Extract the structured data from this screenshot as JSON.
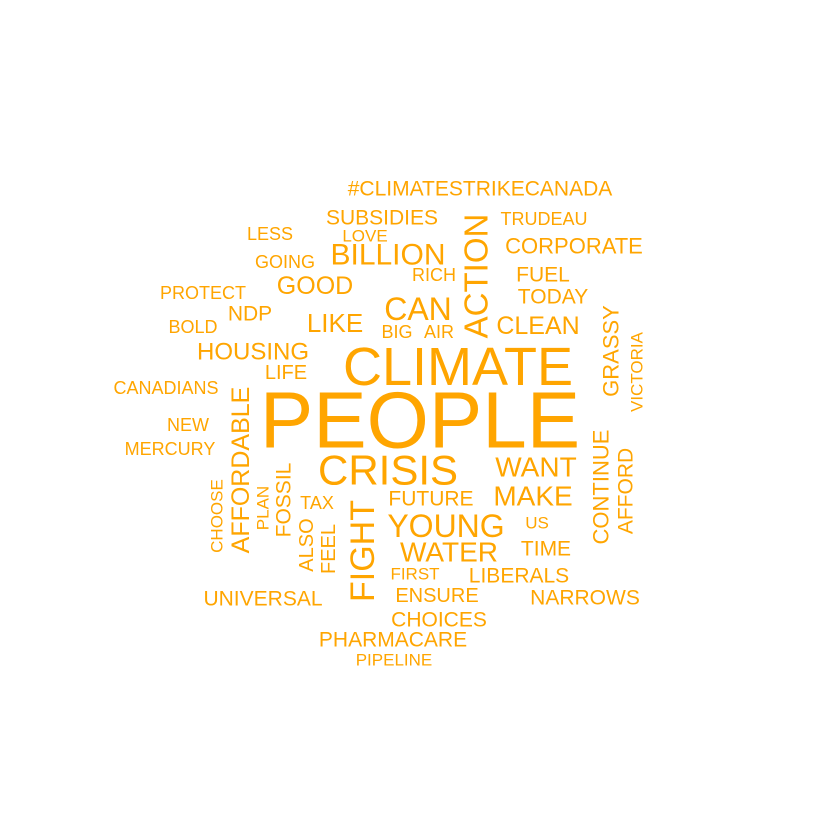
{
  "word_cloud": {
    "color": "#FFA500",
    "background": "#FFFFFF",
    "words": [
      {
        "text": "PEOPLE",
        "rank": 1
      },
      {
        "text": "CLIMATE",
        "rank": 2
      },
      {
        "text": "CRISIS",
        "rank": 3
      },
      {
        "text": "ACTION",
        "rank": 4
      },
      {
        "text": "FIGHT",
        "rank": 5
      },
      {
        "text": "YOUNG",
        "rank": 6
      },
      {
        "text": "CAN",
        "rank": 7
      },
      {
        "text": "BILLION",
        "rank": 8
      },
      {
        "text": "AFFORDABLE",
        "rank": 9
      },
      {
        "text": "WANT",
        "rank": 10
      },
      {
        "text": "MAKE",
        "rank": 11
      },
      {
        "text": "WATER",
        "rank": 12
      },
      {
        "text": "LIKE",
        "rank": 13
      },
      {
        "text": "HOUSING",
        "rank": 14
      },
      {
        "text": "CLEAN",
        "rank": 15
      },
      {
        "text": "GOOD",
        "rank": 16
      },
      {
        "text": "CONTINUE",
        "rank": 17
      },
      {
        "text": "AFFORD",
        "rank": 18
      },
      {
        "text": "CORPORATE",
        "rank": 19
      },
      {
        "text": "GRASSY",
        "rank": 20
      },
      {
        "text": "#CLIMATESTRIKECANADA",
        "rank": 21
      },
      {
        "text": "SUBSIDIES",
        "rank": 22
      },
      {
        "text": "FOSSIL",
        "rank": 23
      },
      {
        "text": "FUTURE",
        "rank": 24
      },
      {
        "text": "LIBERALS",
        "rank": 25
      },
      {
        "text": "UNIVERSAL",
        "rank": 26
      },
      {
        "text": "NARROWS",
        "rank": 27
      },
      {
        "text": "PHARMACARE",
        "rank": 28
      },
      {
        "text": "CHOICES",
        "rank": 29
      },
      {
        "text": "ENSURE",
        "rank": 30
      },
      {
        "text": "TODAY",
        "rank": 31
      },
      {
        "text": "FUEL",
        "rank": 32
      },
      {
        "text": "TIME",
        "rank": 33
      },
      {
        "text": "NDP",
        "rank": 34
      },
      {
        "text": "LIFE",
        "rank": 35
      },
      {
        "text": "ALSO",
        "rank": 36
      },
      {
        "text": "FEEL",
        "rank": 37
      },
      {
        "text": "TRUDEAU",
        "rank": 38
      },
      {
        "text": "CANADIANS",
        "rank": 39
      },
      {
        "text": "MERCURY",
        "rank": 40
      },
      {
        "text": "PROTECT",
        "rank": 41
      },
      {
        "text": "VICTORIA",
        "rank": 42
      },
      {
        "text": "LESS",
        "rank": 43
      },
      {
        "text": "LOVE",
        "rank": 44
      },
      {
        "text": "GOING",
        "rank": 45
      },
      {
        "text": "RICH",
        "rank": 46
      },
      {
        "text": "BOLD",
        "rank": 47
      },
      {
        "text": "BIG",
        "rank": 48
      },
      {
        "text": "AIR",
        "rank": 49
      },
      {
        "text": "NEW",
        "rank": 50
      },
      {
        "text": "TAX",
        "rank": 51
      },
      {
        "text": "PLAN",
        "rank": 52
      },
      {
        "text": "CHOOSE",
        "rank": 53
      },
      {
        "text": "US",
        "rank": 54
      },
      {
        "text": "FIRST",
        "rank": 55
      },
      {
        "text": "PIPELINE",
        "rank": 56
      }
    ]
  }
}
